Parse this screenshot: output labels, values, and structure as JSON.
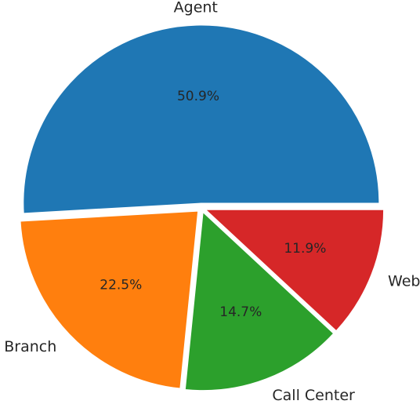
{
  "chart_data": {
    "type": "pie",
    "title": "",
    "categories": [
      "Agent",
      "Branch",
      "Call Center",
      "Web"
    ],
    "values": [
      50.9,
      22.5,
      14.7,
      11.9
    ],
    "percent_labels": [
      "50.9%",
      "22.5%",
      "14.7%",
      "11.9%"
    ],
    "colors": [
      "#1f77b4",
      "#ff7f0e",
      "#2ca02c",
      "#d62728"
    ],
    "start_angle_deg": 0,
    "direction": "counterclockwise",
    "exploded": true,
    "legend": "none"
  }
}
